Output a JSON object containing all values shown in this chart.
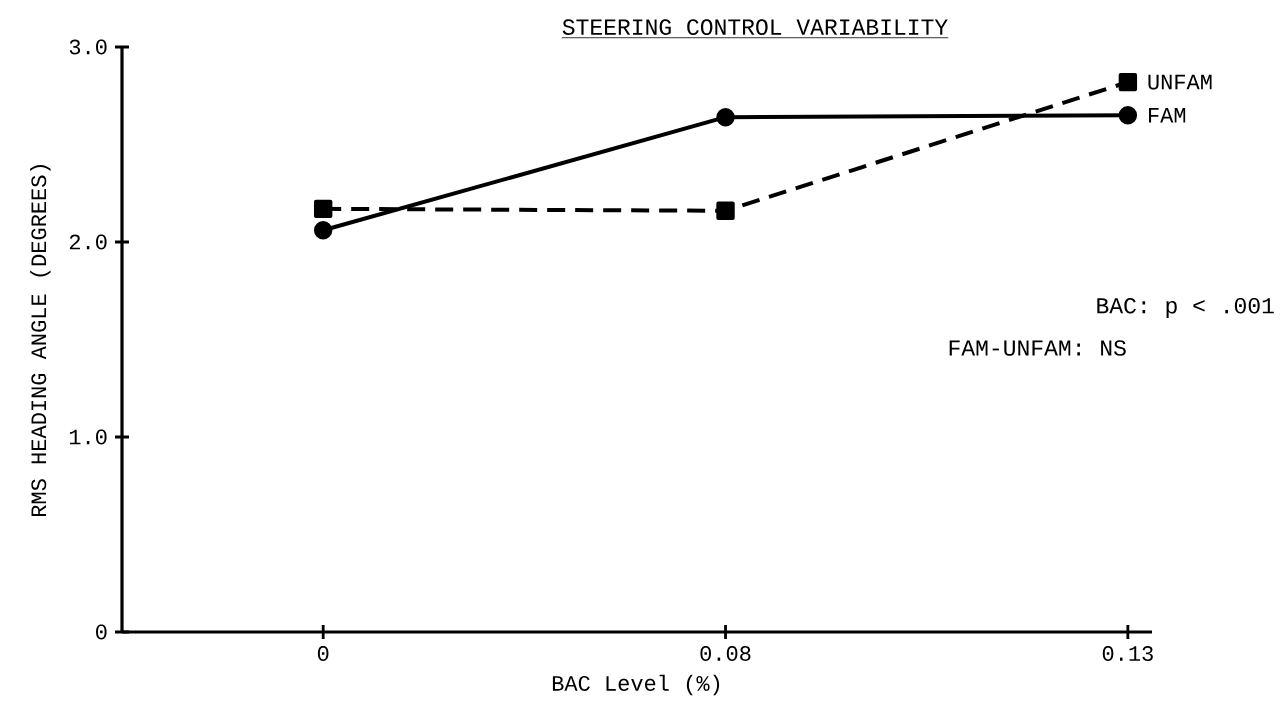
{
  "chart_data": {
    "type": "line",
    "title": "STEERING CONTROL VARIABILITY",
    "xlabel": "BAC Level (%)",
    "ylabel": "RMS HEADING ANGLE (DEGREES)",
    "categories": [
      "0",
      "0.08",
      "0.13"
    ],
    "series": [
      {
        "name": "UNFAM",
        "color": "#000000",
        "values": [
          2.17,
          2.16,
          2.82
        ],
        "marker": "square",
        "line_style": "dashed"
      },
      {
        "name": "FAM",
        "color": "#000000",
        "values": [
          2.06,
          2.64,
          2.65
        ],
        "marker": "circle",
        "line_style": "solid"
      }
    ],
    "ylim": [
      0,
      3.0
    ],
    "yticks": [
      0,
      {
        "value": 1.0,
        "label": "1.0"
      },
      {
        "value": 2.0,
        "label": "2.0"
      },
      {
        "value": 3.0,
        "label": "3.0"
      }
    ],
    "annotations": [
      "BAC: p < .001",
      "FAM-UNFAM: NS"
    ]
  }
}
